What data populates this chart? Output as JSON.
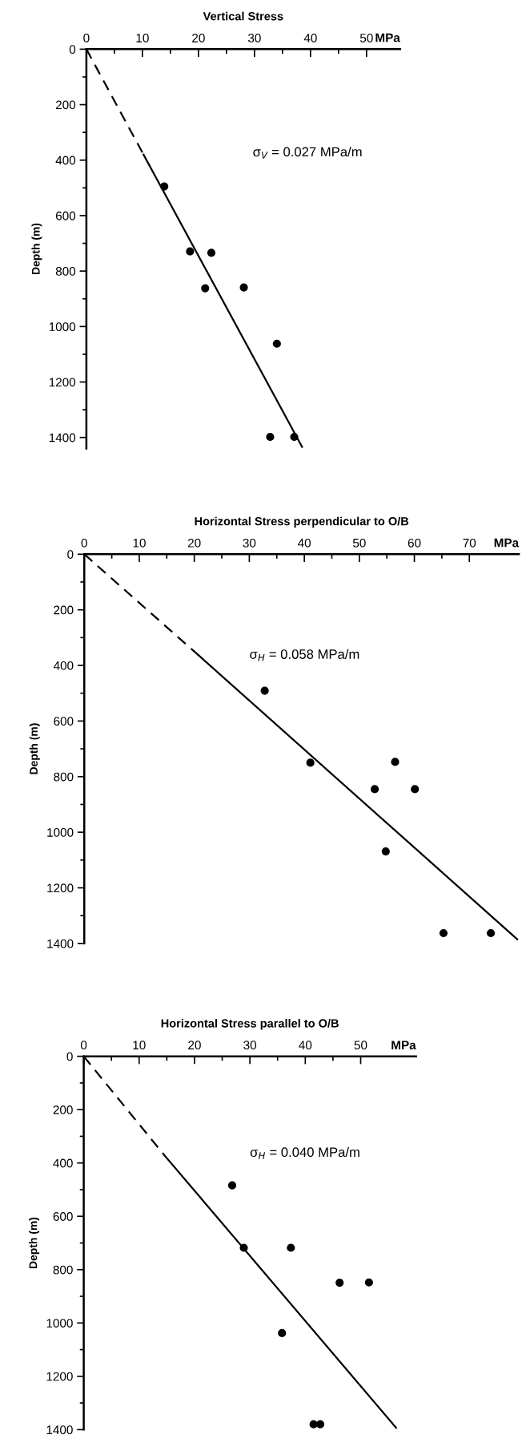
{
  "chart_data": [
    {
      "type": "scatter",
      "title": "Vertical Stress",
      "xlabel": "MPa",
      "ylabel": "Depth (m)",
      "grid": false,
      "xlim": [
        0,
        56
      ],
      "xticks": [
        0,
        {
          "value": 5,
          "label": null
        },
        10,
        {
          "value": 15,
          "label": null
        },
        20,
        {
          "value": 25,
          "label": null
        },
        30,
        {
          "value": 35,
          "label": null
        },
        40,
        {
          "value": 45,
          "label": null
        },
        50
      ],
      "ylim": [
        1440,
        0
      ],
      "yticks": [
        0,
        {
          "value": 100,
          "label": null
        },
        200,
        {
          "value": 300,
          "label": null
        },
        400,
        {
          "value": 500,
          "label": null
        },
        600,
        {
          "value": 700,
          "label": null
        },
        800,
        {
          "value": 900,
          "label": null
        },
        1000,
        {
          "value": 1100,
          "label": null
        },
        1200,
        {
          "value": 1300,
          "label": null
        },
        1400
      ],
      "annotations": [
        "σ$_{V}$ = 0.027 MPa/m"
      ],
      "series": [
        {
          "marker": "circle",
          "color": "#000000",
          "x": [
            13.9,
            18.5,
            22.3,
            21.2,
            28.1,
            34.0,
            32.8,
            37.1
          ],
          "values": [
            495,
            729,
            734,
            862,
            859,
            1062,
            1398,
            1398
          ]
        },
        {
          "type": "line",
          "color": "#000000",
          "line_style": "dashed",
          "x": [
            0,
            10.2
          ],
          "values": [
            0,
            380
          ]
        },
        {
          "type": "line",
          "color": "#000000",
          "line_style": "solid",
          "x": [
            10.2,
            38.5
          ],
          "values": [
            380,
            1434
          ]
        }
      ]
    },
    {
      "type": "scatter",
      "title": "Horizontal Stress perpendicular to O/B",
      "xlabel": "MPa",
      "ylabel": "Depth (m)",
      "grid": false,
      "xlim": [
        0,
        79
      ],
      "xticks": [
        0,
        {
          "value": 5,
          "label": null
        },
        10,
        {
          "value": 15,
          "label": null
        },
        20,
        {
          "value": 25,
          "label": null
        },
        30,
        {
          "value": 35,
          "label": null
        },
        40,
        {
          "value": 45,
          "label": null
        },
        50,
        {
          "value": 55,
          "label": null
        },
        60,
        {
          "value": 65,
          "label": null
        },
        70
      ],
      "ylim": [
        1400,
        0
      ],
      "yticks": [
        0,
        {
          "value": 100,
          "label": null
        },
        200,
        {
          "value": 300,
          "label": null
        },
        400,
        {
          "value": 500,
          "label": null
        },
        600,
        {
          "value": 700,
          "label": null
        },
        800,
        {
          "value": 900,
          "label": null
        },
        1000,
        {
          "value": 1100,
          "label": null
        },
        1200,
        {
          "value": 1300,
          "label": null
        },
        1400
      ],
      "annotations": [
        "σ$_{H}$ = 0.058 MPa/m"
      ],
      "series": [
        {
          "marker": "circle",
          "color": "#000000",
          "x": [
            32.8,
            41.1,
            56.5,
            52.8,
            60.1,
            54.8,
            65.3,
            73.9
          ],
          "values": [
            491,
            750,
            747,
            845,
            845,
            1069,
            1363,
            1363
          ]
        },
        {
          "type": "line",
          "color": "#000000",
          "line_style": "dashed",
          "x": [
            0,
            20
          ],
          "values": [
            0,
            350
          ]
        },
        {
          "type": "line",
          "color": "#000000",
          "line_style": "solid",
          "x": [
            20,
            78.7
          ],
          "values": [
            350,
            1385
          ]
        }
      ]
    },
    {
      "type": "scatter",
      "title": "Horizontal Stress parallel to O/B",
      "xlabel": "MPa",
      "ylabel": "Depth (m)",
      "grid": false,
      "xlim": [
        0,
        60
      ],
      "xticks": [
        0,
        {
          "value": 5,
          "label": null
        },
        10,
        {
          "value": 15,
          "label": null
        },
        20,
        {
          "value": 25,
          "label": null
        },
        30,
        {
          "value": 35,
          "label": null
        },
        40,
        {
          "value": 45,
          "label": null
        },
        50
      ],
      "ylim": [
        1400,
        0
      ],
      "yticks": [
        0,
        {
          "value": 100,
          "label": null
        },
        200,
        {
          "value": 300,
          "label": null
        },
        400,
        {
          "value": 500,
          "label": null
        },
        600,
        {
          "value": 700,
          "label": null
        },
        800,
        {
          "value": 900,
          "label": null
        },
        1000,
        {
          "value": 1100,
          "label": null
        },
        1200,
        {
          "value": 1300,
          "label": null
        },
        1400
      ],
      "annotations": [
        "σ$_{H}$ = 0.040 MPa/m"
      ],
      "series": [
        {
          "marker": "circle",
          "color": "#000000",
          "x": [
            26.8,
            28.9,
            37.4,
            46.2,
            51.5,
            35.8,
            41.5,
            42.7
          ],
          "values": [
            484,
            718,
            718,
            849,
            848,
            1038,
            1380,
            1380
          ]
        },
        {
          "type": "line",
          "color": "#000000",
          "line_style": "dashed",
          "x": [
            0,
            14.6
          ],
          "values": [
            0,
            372
          ]
        },
        {
          "type": "line",
          "color": "#000000",
          "line_style": "solid",
          "x": [
            14.6,
            56.4
          ],
          "values": [
            372,
            1393
          ]
        }
      ]
    }
  ]
}
